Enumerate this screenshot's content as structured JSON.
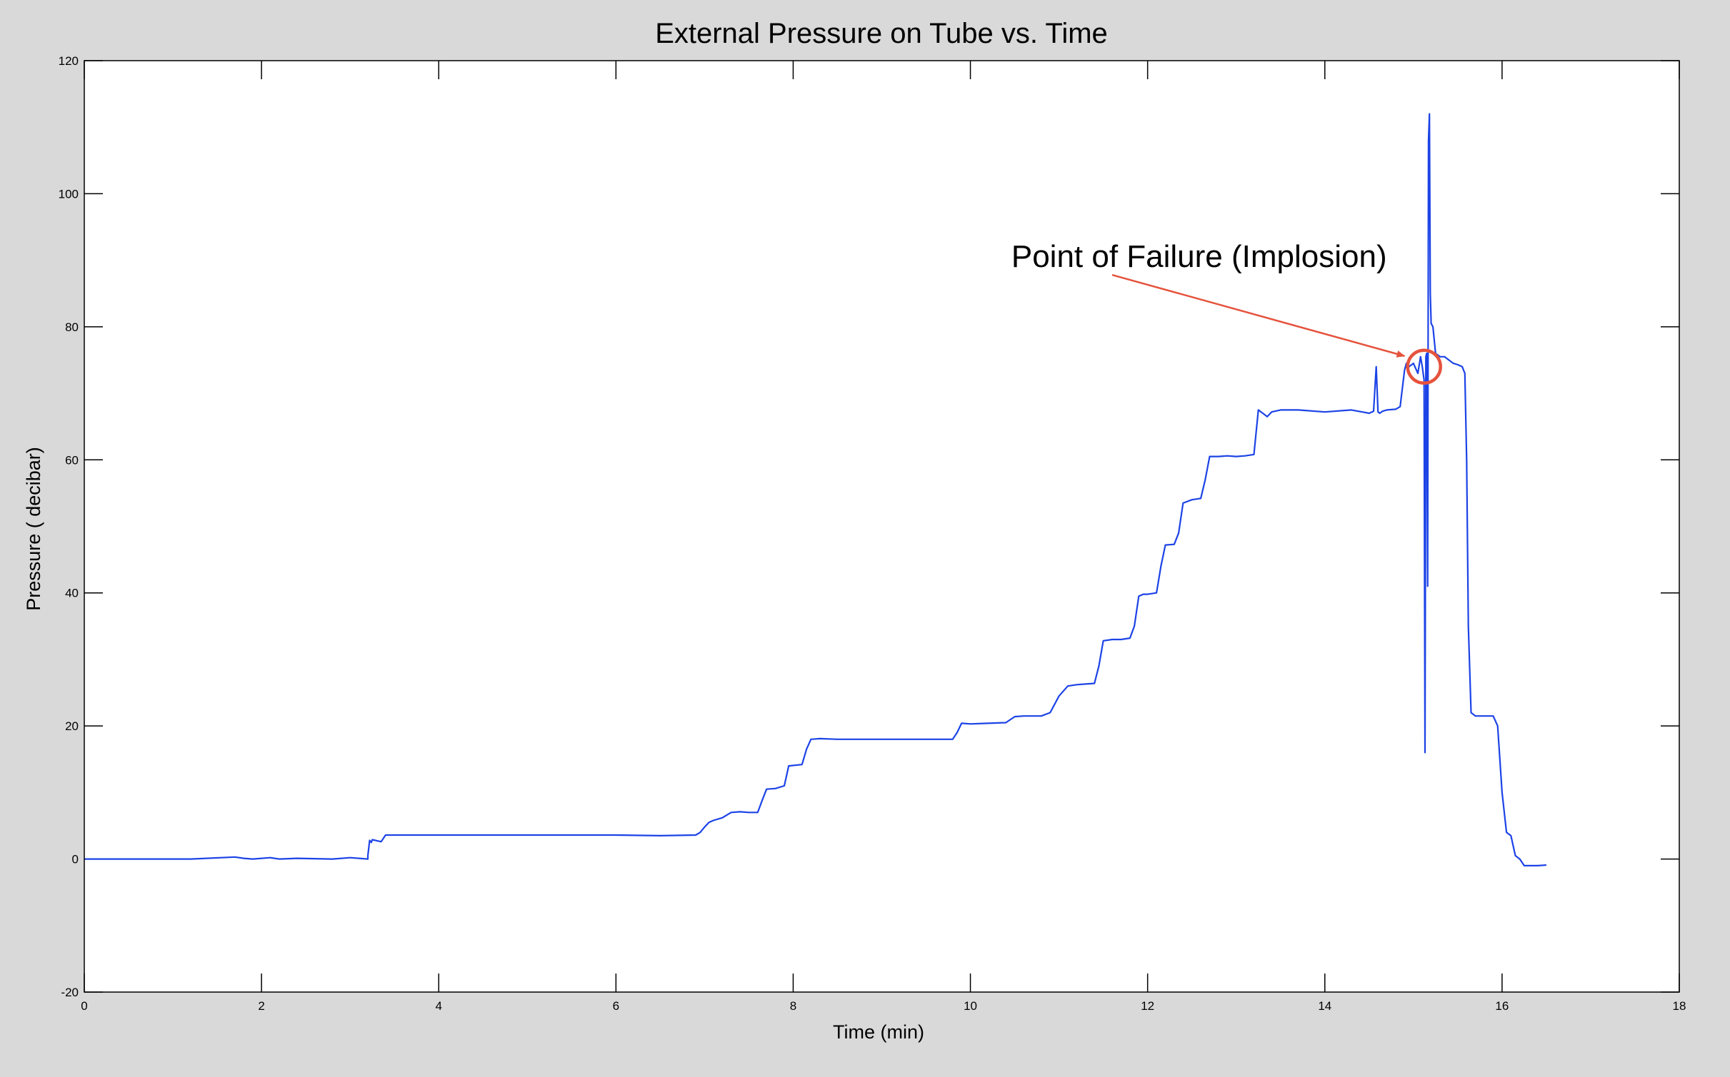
{
  "colors": {
    "figure_background": "#d9d9d9",
    "axes_background": "#ffffff",
    "line": "#1c43e6",
    "annotation": "#e5533d",
    "text": "#000000"
  },
  "chart_data": {
    "type": "line",
    "title": "External Pressure on Tube vs. Time",
    "xlabel": "Time (min)",
    "ylabel": "Pressure ( decibar)",
    "xlim": [
      0,
      18
    ],
    "ylim": [
      -20,
      120
    ],
    "xticks": [
      0,
      2,
      4,
      6,
      8,
      10,
      12,
      14,
      16,
      18
    ],
    "yticks": [
      -20,
      0,
      20,
      40,
      60,
      80,
      100,
      120
    ],
    "grid": false,
    "legend": "none",
    "series": [
      {
        "values_x": [
          0,
          1.2,
          1.7,
          1.8,
          1.9,
          2.1,
          2.2,
          2.4,
          2.8,
          3.0,
          3.2,
          3.2,
          3.22,
          3.24,
          3.25,
          3.35,
          3.4,
          3.5,
          4.0,
          5.0,
          6.0,
          6.5,
          6.9,
          6.95,
          7.0,
          7.05,
          7.1,
          7.2,
          7.3,
          7.4,
          7.5,
          7.6,
          7.65,
          7.7,
          7.8,
          7.9,
          7.95,
          8.1,
          8.15,
          8.2,
          8.3,
          8.5,
          9.0,
          9.5,
          9.8,
          9.85,
          9.9,
          10.0,
          10.2,
          10.4,
          10.5,
          10.6,
          10.8,
          10.9,
          11.0,
          11.1,
          11.2,
          11.3,
          11.4,
          11.45,
          11.5,
          11.6,
          11.7,
          11.8,
          11.85,
          11.9,
          11.95,
          12.0,
          12.1,
          12.15,
          12.2,
          12.3,
          12.35,
          12.4,
          12.5,
          12.6,
          12.65,
          12.7,
          12.8,
          12.9,
          13.0,
          13.1,
          13.2,
          13.25,
          13.3,
          13.35,
          13.4,
          13.5,
          13.7,
          14.0,
          14.3,
          14.5,
          14.55,
          14.58,
          14.6,
          14.62,
          14.65,
          14.7,
          14.8,
          14.85,
          14.9,
          14.92,
          14.95,
          15.0,
          15.05,
          15.08,
          15.1,
          15.12,
          15.13,
          15.14,
          15.15,
          15.16,
          15.17,
          15.18,
          15.19,
          15.2,
          15.22,
          15.25,
          15.3,
          15.35,
          15.4,
          15.45,
          15.5,
          15.55,
          15.58,
          15.6,
          15.62,
          15.65,
          15.7,
          15.8,
          15.9,
          15.95,
          16.0,
          16.05,
          16.1,
          16.15,
          16.2,
          16.25,
          16.3,
          16.4,
          16.5
        ],
        "values_y": [
          0,
          0,
          0.3,
          0.1,
          0,
          0.2,
          0,
          0.1,
          0,
          0.2,
          0,
          0.5,
          2.8,
          2.5,
          2.9,
          2.6,
          3.6,
          3.6,
          3.6,
          3.6,
          3.6,
          3.5,
          3.6,
          4.0,
          4.8,
          5.5,
          5.8,
          6.2,
          7.0,
          7.1,
          7.0,
          7.0,
          8.8,
          10.5,
          10.6,
          11.0,
          14.0,
          14.2,
          16.5,
          18.0,
          18.1,
          18.0,
          18.0,
          18.0,
          18.0,
          19.0,
          20.4,
          20.3,
          20.4,
          20.5,
          21.4,
          21.5,
          21.5,
          22.0,
          24.5,
          26.0,
          26.2,
          26.3,
          26.4,
          29.0,
          32.8,
          33.0,
          33.0,
          33.2,
          35.0,
          39.5,
          39.8,
          39.8,
          40.0,
          44.0,
          47.2,
          47.3,
          49.0,
          53.5,
          54.0,
          54.2,
          57.0,
          60.5,
          60.5,
          60.6,
          60.5,
          60.6,
          60.8,
          67.5,
          67.0,
          66.5,
          67.2,
          67.5,
          67.5,
          67.2,
          67.5,
          67.0,
          67.3,
          74.0,
          67.2,
          67.0,
          67.3,
          67.5,
          67.6,
          68.0,
          73.5,
          74.5,
          74.0,
          74.5,
          73.0,
          75.5,
          74.0,
          72.0,
          16.0,
          75.5,
          76.0,
          41.0,
          108.0,
          112.0,
          85.0,
          80.5,
          80.0,
          76.0,
          75.5,
          75.5,
          75.0,
          74.5,
          74.3,
          74.0,
          73.0,
          60.0,
          35.0,
          22.0,
          21.5,
          21.5,
          21.5,
          20.0,
          10.0,
          4.0,
          3.5,
          0.5,
          0.0,
          -1.0,
          -1.0,
          -1.0,
          -0.9
        ]
      }
    ],
    "annotations": [
      {
        "text": "Point of Failure (Implosion)",
        "text_at": [
          14.7,
          89
        ],
        "arrow_from": [
          11.6,
          87.8
        ],
        "arrow_to": [
          14.9,
          75.6
        ],
        "circle_at": [
          15.12,
          74.0
        ]
      }
    ]
  }
}
